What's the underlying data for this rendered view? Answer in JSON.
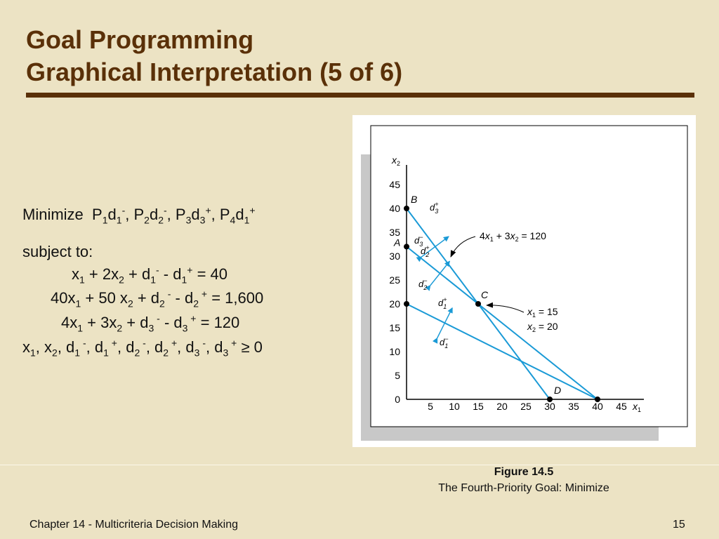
{
  "slide": {
    "title_line1": "Goal Programming",
    "title_line2": "Graphical Interpretation (5 of 6)",
    "footer_left": "Chapter 14 - Multicriteria Decision Making",
    "footer_right": "15",
    "figure_caption_title": "Figure 14.5",
    "figure_caption_sub": "The Fourth-Priority Goal:  Minimize"
  },
  "model": {
    "minimize_word": "Minimize",
    "objective_terms": [
      {
        "P": "P",
        "Pi": "1",
        "d": "d",
        "di": "1",
        "sign": "-"
      },
      {
        "P": "P",
        "Pi": "2",
        "d": "d",
        "di": "2",
        "sign": "-"
      },
      {
        "P": "P",
        "Pi": "3",
        "d": "d",
        "di": "3",
        "sign": "+"
      },
      {
        "P": "P",
        "Pi": "4",
        "d": "d",
        "di": "1",
        "sign": "+"
      }
    ],
    "subject_to": "subject to:",
    "c1": {
      "a": "x",
      "as": "1",
      "b": " + 2x",
      "bs": "2",
      "c": " + d",
      "cs": "1",
      "cp": "-",
      "d": " - d",
      "ds": "1",
      "dp": "+",
      "rhs": " = 40"
    },
    "c2": {
      "a": "40x",
      "as": "1",
      "b": " + 50 x",
      "bs": "2",
      "c": " + d",
      "cs": "2",
      "cp": " -",
      "d": " - d",
      "ds": "2",
      "dp": " +",
      "rhs": " = 1,600"
    },
    "c3": {
      "a": "4x",
      "as": "1",
      "b": " + 3x",
      "bs": "2",
      "c": " + d",
      "cs": "3",
      "cp": " -",
      "d": " - d",
      "ds": "3",
      "dp": " +",
      "rhs": " = 120"
    },
    "nonneg": {
      "t1": "x",
      "s1": "1",
      "t2": ", x",
      "s2": "2",
      "t3": ", d",
      "s3": "1",
      "p3": " -",
      "t4": ", d",
      "s4": "1",
      "p4": " +",
      "t5": ", d",
      "s5": "2",
      "p5": " -",
      "t6": ", d",
      "s6": "2",
      "p6": " +",
      "t7": ", d",
      "s7": "3",
      "p7": " -",
      "t8": ", d",
      "s8": "3",
      "p8": " +",
      "rhs": " ≥ 0"
    }
  },
  "chart_data": {
    "type": "line",
    "x_axis": {
      "label": "x",
      "sub": "1",
      "range": [
        0,
        50
      ],
      "ticks": [
        0,
        5,
        10,
        15,
        20,
        25,
        30,
        35,
        40,
        45
      ]
    },
    "y_axis": {
      "label": "x",
      "sub": "2",
      "range": [
        0,
        50
      ],
      "ticks": [
        0,
        5,
        10,
        15,
        20,
        25,
        30,
        35,
        40,
        45
      ]
    },
    "series": [
      {
        "points": [
          [
            0,
            40
          ],
          [
            30,
            0
          ]
        ]
      },
      {
        "points": [
          [
            0,
            32
          ],
          [
            40,
            0
          ]
        ]
      },
      {
        "points": [
          [
            0,
            20
          ],
          [
            40,
            0
          ]
        ]
      }
    ],
    "points": [
      {
        "label": "A",
        "x": 0,
        "y": 32
      },
      {
        "label": "B",
        "x": 0,
        "y": 40
      },
      {
        "label": "C",
        "x": 15,
        "y": 20
      },
      {
        "label": "D",
        "x": 30,
        "y": 0
      },
      {
        "label": "",
        "x": 0,
        "y": 20
      },
      {
        "label": "",
        "x": 40,
        "y": 0
      }
    ],
    "annotations": {
      "line_label": {
        "a": "4",
        "x1": "x",
        "s1": "1",
        "mid": " + 3",
        "x2": "x",
        "s2": "2",
        "end": " = 120"
      },
      "c_x1": {
        "v": "x",
        "s": "1",
        "rest": " = 15"
      },
      "c_x2": {
        "v": "x",
        "s": "2",
        "rest": " = 20"
      }
    },
    "deviations": [
      {
        "d": "d",
        "sub": "3",
        "sup": "+"
      },
      {
        "d": "d",
        "sub": "3",
        "sup": "−"
      },
      {
        "d": "d",
        "sub": "2",
        "sup": "+"
      },
      {
        "d": "d",
        "sub": "2",
        "sup": "−"
      },
      {
        "d": "d",
        "sub": "1",
        "sup": "+"
      },
      {
        "d": "d",
        "sub": "1",
        "sup": "−"
      }
    ],
    "colors": {
      "line": "#1a9ad6",
      "arrow": "#1a9ad6",
      "axis": "#000000",
      "shadow": "#c8c8c8"
    }
  }
}
